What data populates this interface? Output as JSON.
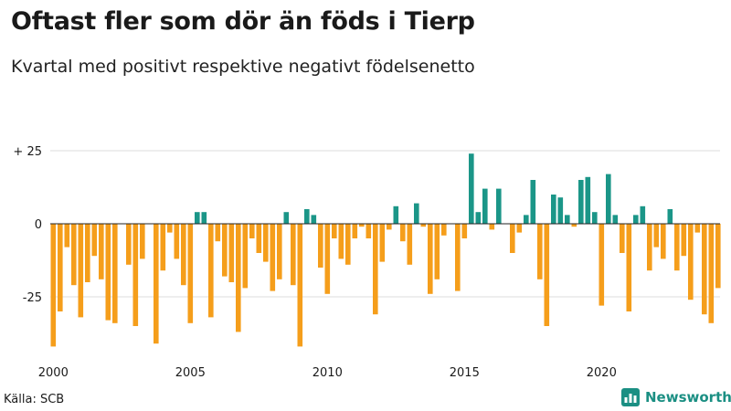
{
  "header": {
    "title": "Oftast fler som dör än föds i Tierp",
    "subtitle": "Kvartal med positivt respektive negativt födelsenetto"
  },
  "footer": {
    "source": "Källa: SCB",
    "brand": "Newsworthy"
  },
  "colors": {
    "positive": "#1b9688",
    "negative": "#f59e1b",
    "grid": "#dddddd",
    "brand": "#1b8f83"
  },
  "chart_data": {
    "type": "bar",
    "title": "Oftast fler som dör än föds i Tierp",
    "subtitle": "Kvartal med positivt respektive negativt födelsenetto",
    "xlabel": "",
    "ylabel": "",
    "ylim": [
      -45,
      30
    ],
    "y_ticks": [
      {
        "value": 25,
        "label": "+ 25"
      },
      {
        "value": 0,
        "label": "0"
      },
      {
        "value": -25,
        "label": "-25"
      }
    ],
    "x_ticks": [
      {
        "year": 2000,
        "label": "2000"
      },
      {
        "year": 2005,
        "label": "2005"
      },
      {
        "year": 2010,
        "label": "2010"
      },
      {
        "year": 2015,
        "label": "2015"
      },
      {
        "year": 2020,
        "label": "2020"
      }
    ],
    "start_year": 2000,
    "periods_per_year": 4,
    "values": [
      -42,
      -30,
      -8,
      -21,
      -32,
      -20,
      -11,
      -19,
      -33,
      -34,
      0,
      -14,
      -35,
      -12,
      0,
      -41,
      -16,
      -3,
      -12,
      -21,
      -34,
      4,
      4,
      -32,
      -6,
      -18,
      -20,
      -37,
      -22,
      -5,
      -10,
      -13,
      -23,
      -19,
      4,
      -21,
      -42,
      5,
      3,
      -15,
      -24,
      -5,
      -12,
      -14,
      -5,
      -1,
      -5,
      -31,
      -13,
      -2,
      6,
      -6,
      -14,
      7,
      -1,
      -24,
      -19,
      -4,
      0,
      -23,
      -5,
      24,
      4,
      12,
      -2,
      12,
      0,
      -10,
      -3,
      3,
      15,
      -19,
      -35,
      10,
      9,
      3,
      -1,
      15,
      16,
      4,
      -28,
      17,
      3,
      -10,
      -30,
      3,
      6,
      -16,
      -8,
      -12,
      5,
      -16,
      -11,
      -26,
      -3,
      -31,
      -34,
      -22
    ]
  }
}
